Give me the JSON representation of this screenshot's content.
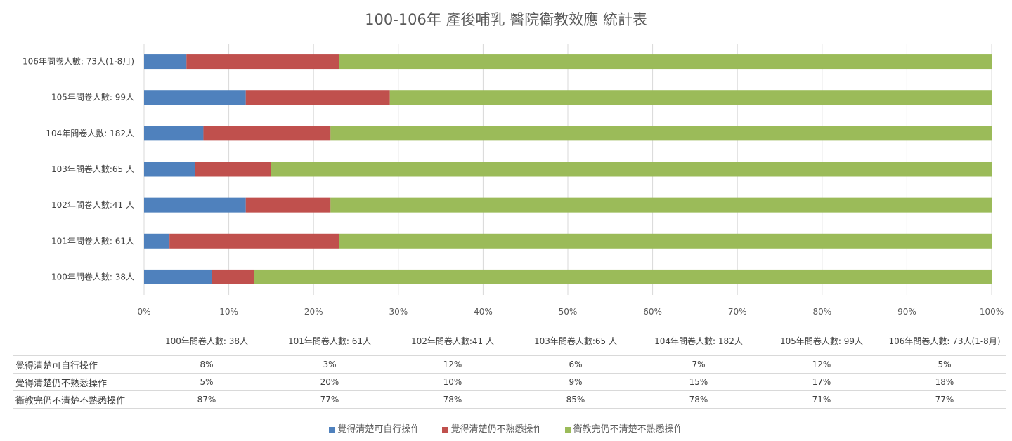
{
  "chart_data": {
    "type": "bar",
    "orientation": "horizontal",
    "stacked": "percent",
    "title": "100-106年 產後哺乳  醫院衛教效應   統計表",
    "categories": [
      "100年問卷人數: 38人",
      "101年問卷人數: 61人",
      "102年問卷人數:41 人",
      "103年問卷人數:65 人",
      "104年問卷人數: 182人",
      "105年問卷人數: 99人",
      "106年問卷人數: 73人(1-8月)"
    ],
    "series": [
      {
        "name": "覺得清楚可自行操作",
        "values": [
          8,
          3,
          12,
          6,
          7,
          12,
          5
        ],
        "color": "#4f81bd"
      },
      {
        "name": "覺得清楚仍不熟悉操作",
        "values": [
          5,
          20,
          10,
          9,
          15,
          17,
          18
        ],
        "color": "#c0504d"
      },
      {
        "name": "衛教完仍不清楚不熟悉操作",
        "values": [
          87,
          77,
          78,
          85,
          78,
          71,
          77
        ],
        "color": "#9bbb59"
      }
    ],
    "xlim": [
      0,
      100
    ],
    "xticks": [
      "0%",
      "10%",
      "20%",
      "30%",
      "40%",
      "50%",
      "60%",
      "70%",
      "80%",
      "90%",
      "100%"
    ],
    "grid": true,
    "legend": "bottom",
    "table": {
      "headers": [
        "100年問卷人數: 38人",
        "101年問卷人數: 61人",
        "102年問卷人數:41 人",
        "103年問卷人數:65 人",
        "104年問卷人數: 182人",
        "105年問卷人數: 99人",
        "106年問卷人數: 73人(1-8月)"
      ],
      "rows": [
        {
          "label": "覺得清楚可自行操作",
          "values": [
            "8%",
            "3%",
            "12%",
            "6%",
            "7%",
            "12%",
            "5%"
          ]
        },
        {
          "label": "覺得清楚仍不熟悉操作",
          "values": [
            "5%",
            "20%",
            "10%",
            "9%",
            "15%",
            "17%",
            "18%"
          ]
        },
        {
          "label": "衛教完仍不清楚不熟悉操作",
          "values": [
            "87%",
            "77%",
            "78%",
            "85%",
            "78%",
            "71%",
            "77%"
          ]
        }
      ]
    }
  }
}
